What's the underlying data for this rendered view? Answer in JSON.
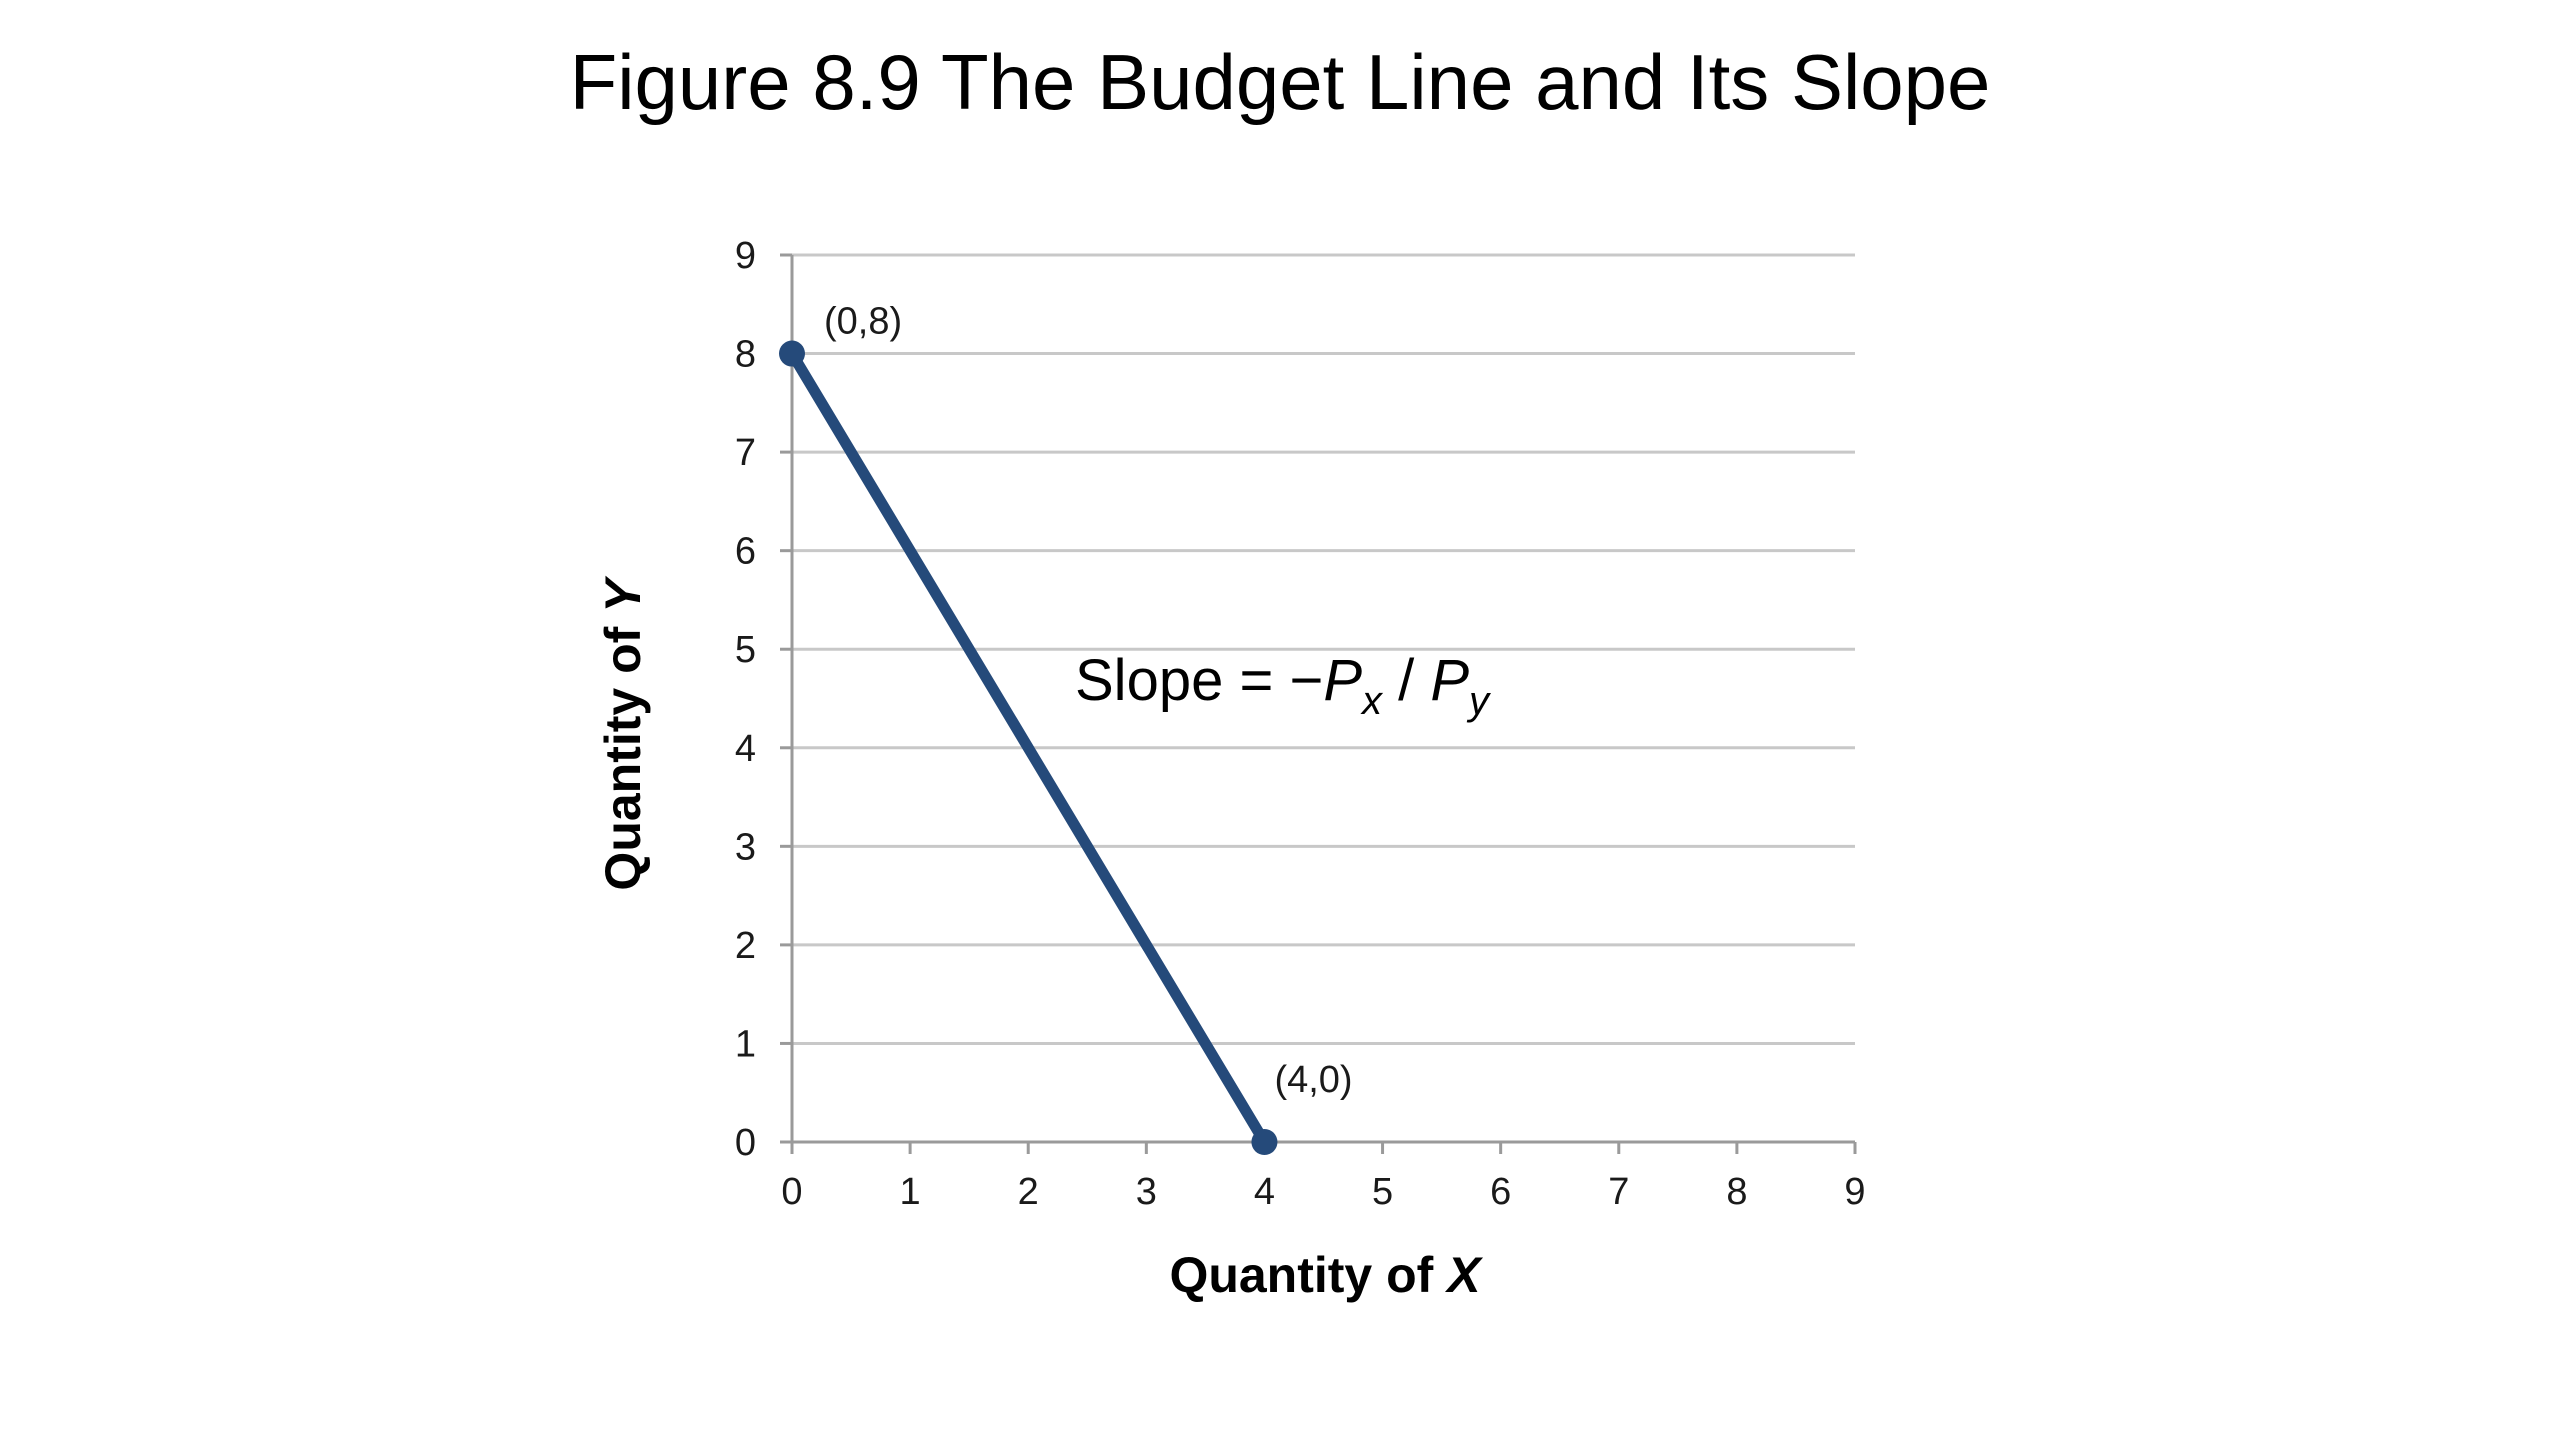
{
  "slide": {
    "title": "Figure 8.9 The Budget Line and Its Slope"
  },
  "colors": {
    "line": "#254a7a",
    "grid": "#c8c8c8",
    "axis": "#9a9a9a",
    "text": "#000000"
  },
  "chart_data": {
    "type": "line",
    "xlabel": "Quantity of X",
    "xlabel_prefix": "Quantity of ",
    "xlabel_var": "X",
    "ylabel": "Quantity of Y",
    "ylabel_prefix": "Quantity of ",
    "ylabel_var": "Y",
    "xlim": [
      0,
      9
    ],
    "ylim": [
      0,
      9
    ],
    "x_ticks": [
      "0",
      "1",
      "2",
      "3",
      "4",
      "5",
      "6",
      "7",
      "8",
      "9"
    ],
    "y_ticks": [
      "0",
      "1",
      "2",
      "3",
      "4",
      "5",
      "6",
      "7",
      "8",
      "9"
    ],
    "grid": "horizontal",
    "series": [
      {
        "points": [
          {
            "x": 0,
            "y": 8,
            "label": "(0,8)"
          },
          {
            "x": 4,
            "y": 0,
            "label": "(4,0)"
          }
        ]
      }
    ],
    "annotation": {
      "prefix": "Slope = −",
      "p1": "P",
      "sub1": "x",
      "slash": " / ",
      "p2": "P",
      "sub2": "y"
    }
  }
}
